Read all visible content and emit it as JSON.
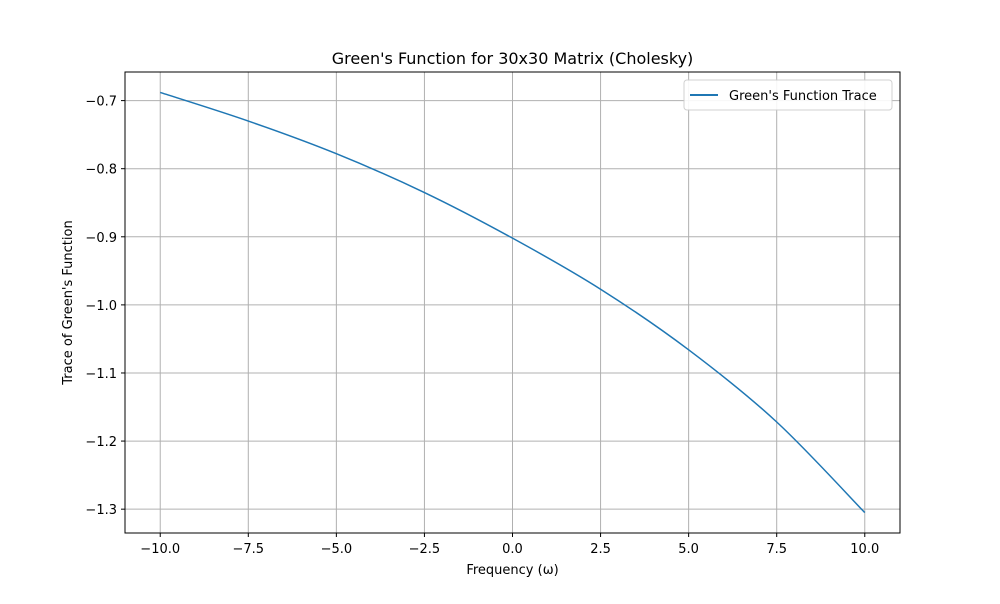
{
  "chart_data": {
    "type": "line",
    "title": "Green's Function for 30x30 Matrix (Cholesky)",
    "xlabel": "Frequency (ω)",
    "ylabel": "Trace of Green's Function",
    "xlim": [
      -11.0,
      11.0
    ],
    "ylim": [
      -1.335,
      -0.658
    ],
    "xticks": [
      -10,
      -7.5,
      -5,
      -2.5,
      0,
      2.5,
      5,
      7.5,
      10
    ],
    "xtick_labels": [
      "−10.0",
      "−7.5",
      "−5.0",
      "−2.5",
      "0.0",
      "2.5",
      "5.0",
      "7.5",
      "10.0"
    ],
    "yticks": [
      -0.7,
      -0.8,
      -0.9,
      -1.0,
      -1.1,
      -1.2,
      -1.3
    ],
    "ytick_labels": [
      "−0.7",
      "−0.8",
      "−0.9",
      "−1.0",
      "−1.1",
      "−1.2",
      "−1.3"
    ],
    "grid": true,
    "legend_position": "top-right",
    "series": [
      {
        "name": "Green's Function Trace",
        "color": "#1f77b4",
        "x": [
          -10,
          -7.5,
          -5,
          -2.5,
          0,
          2.5,
          5,
          7.5,
          10
        ],
        "y": [
          -0.688,
          -0.73,
          -0.778,
          -0.835,
          -0.902,
          -0.977,
          -1.066,
          -1.172,
          -1.305
        ]
      }
    ]
  }
}
